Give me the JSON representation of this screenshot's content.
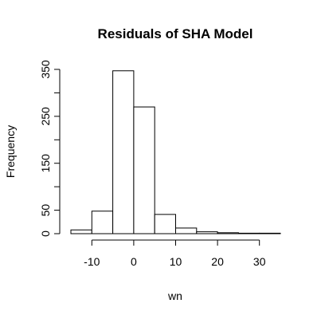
{
  "chart_data": {
    "type": "bar",
    "title": "Residuals of SHA Model",
    "xlabel": "wn",
    "ylabel": "Frequency",
    "x_ticks": [
      -10,
      0,
      10,
      20,
      30
    ],
    "y_ticks": [
      0,
      50,
      150,
      250,
      350
    ],
    "xlim": [
      -15,
      35
    ],
    "ylim": [
      0,
      350
    ],
    "bins": [
      {
        "x0": -15,
        "x1": -10,
        "count": 8
      },
      {
        "x0": -10,
        "x1": -5,
        "count": 48
      },
      {
        "x0": -5,
        "x1": 0,
        "count": 347
      },
      {
        "x0": 0,
        "x1": 5,
        "count": 270
      },
      {
        "x0": 5,
        "x1": 10,
        "count": 41
      },
      {
        "x0": 10,
        "x1": 15,
        "count": 12
      },
      {
        "x0": 15,
        "x1": 20,
        "count": 4
      },
      {
        "x0": 20,
        "x1": 25,
        "count": 2
      },
      {
        "x0": 25,
        "x1": 30,
        "count": 1
      },
      {
        "x0": 30,
        "x1": 35,
        "count": 1
      }
    ]
  }
}
